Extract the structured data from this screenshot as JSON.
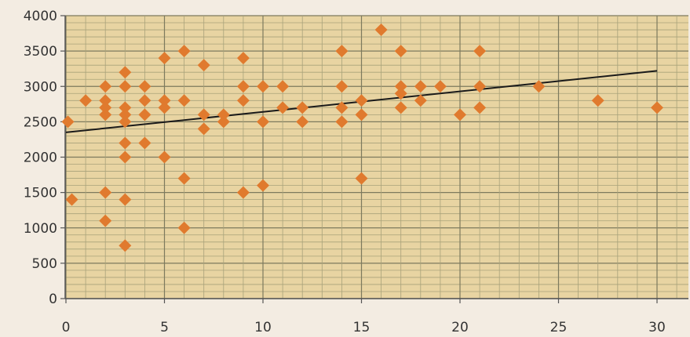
{
  "chart_data": {
    "type": "scatter",
    "title": "",
    "xlabel": "",
    "ylabel": "",
    "xlim": [
      0,
      31
    ],
    "ylim": [
      0,
      4000
    ],
    "x_ticks": [
      "0",
      "5",
      "10",
      "15",
      "20",
      "25",
      "30"
    ],
    "y_ticks": [
      "0",
      "500",
      "1000",
      "1500",
      "2000",
      "2500",
      "3000",
      "3500",
      "4000"
    ],
    "grid": true,
    "legend": "none",
    "colors": {
      "marker": "#e07a2e",
      "trendline": "#1a1a1a",
      "grid_major": "#7d7a5e",
      "grid_minor": "#a8a27a",
      "paper": "#e8d4a2"
    },
    "series": [
      {
        "points": [
          [
            0.1,
            2500
          ],
          [
            0.3,
            1400
          ],
          [
            1,
            2800
          ],
          [
            2,
            3000
          ],
          [
            2,
            2800
          ],
          [
            2,
            2700
          ],
          [
            2,
            2600
          ],
          [
            2,
            1500
          ],
          [
            2,
            1100
          ],
          [
            3,
            3200
          ],
          [
            3,
            3000
          ],
          [
            3,
            2700
          ],
          [
            3,
            2600
          ],
          [
            3,
            2500
          ],
          [
            3,
            2200
          ],
          [
            3,
            2000
          ],
          [
            3,
            1400
          ],
          [
            3,
            750
          ],
          [
            4,
            3000
          ],
          [
            4,
            2800
          ],
          [
            4,
            2600
          ],
          [
            4,
            2200
          ],
          [
            5,
            3400
          ],
          [
            5,
            2800
          ],
          [
            5,
            2700
          ],
          [
            5,
            2000
          ],
          [
            6,
            3500
          ],
          [
            6,
            2800
          ],
          [
            6,
            1700
          ],
          [
            6,
            1000
          ],
          [
            7,
            3300
          ],
          [
            7,
            2600
          ],
          [
            7,
            2400
          ],
          [
            8,
            2600
          ],
          [
            8,
            2500
          ],
          [
            9,
            3400
          ],
          [
            9,
            3000
          ],
          [
            9,
            2800
          ],
          [
            9,
            1500
          ],
          [
            10,
            3000
          ],
          [
            10,
            2500
          ],
          [
            10,
            1600
          ],
          [
            11,
            3000
          ],
          [
            11,
            2700
          ],
          [
            12,
            2700
          ],
          [
            12,
            2500
          ],
          [
            14,
            3500
          ],
          [
            14,
            3000
          ],
          [
            14,
            2700
          ],
          [
            14,
            2500
          ],
          [
            15,
            2800
          ],
          [
            15,
            2600
          ],
          [
            15,
            1700
          ],
          [
            16,
            3800
          ],
          [
            17,
            3500
          ],
          [
            17,
            3000
          ],
          [
            17,
            2900
          ],
          [
            17,
            2700
          ],
          [
            18,
            3000
          ],
          [
            18,
            2800
          ],
          [
            19,
            3000
          ],
          [
            20,
            2600
          ],
          [
            21,
            3500
          ],
          [
            21,
            3000
          ],
          [
            21,
            2700
          ],
          [
            24,
            3000
          ],
          [
            27,
            2800
          ],
          [
            30,
            2700
          ]
        ]
      }
    ],
    "trendline": {
      "x": [
        0,
        30
      ],
      "y": [
        2350,
        3220
      ]
    }
  }
}
